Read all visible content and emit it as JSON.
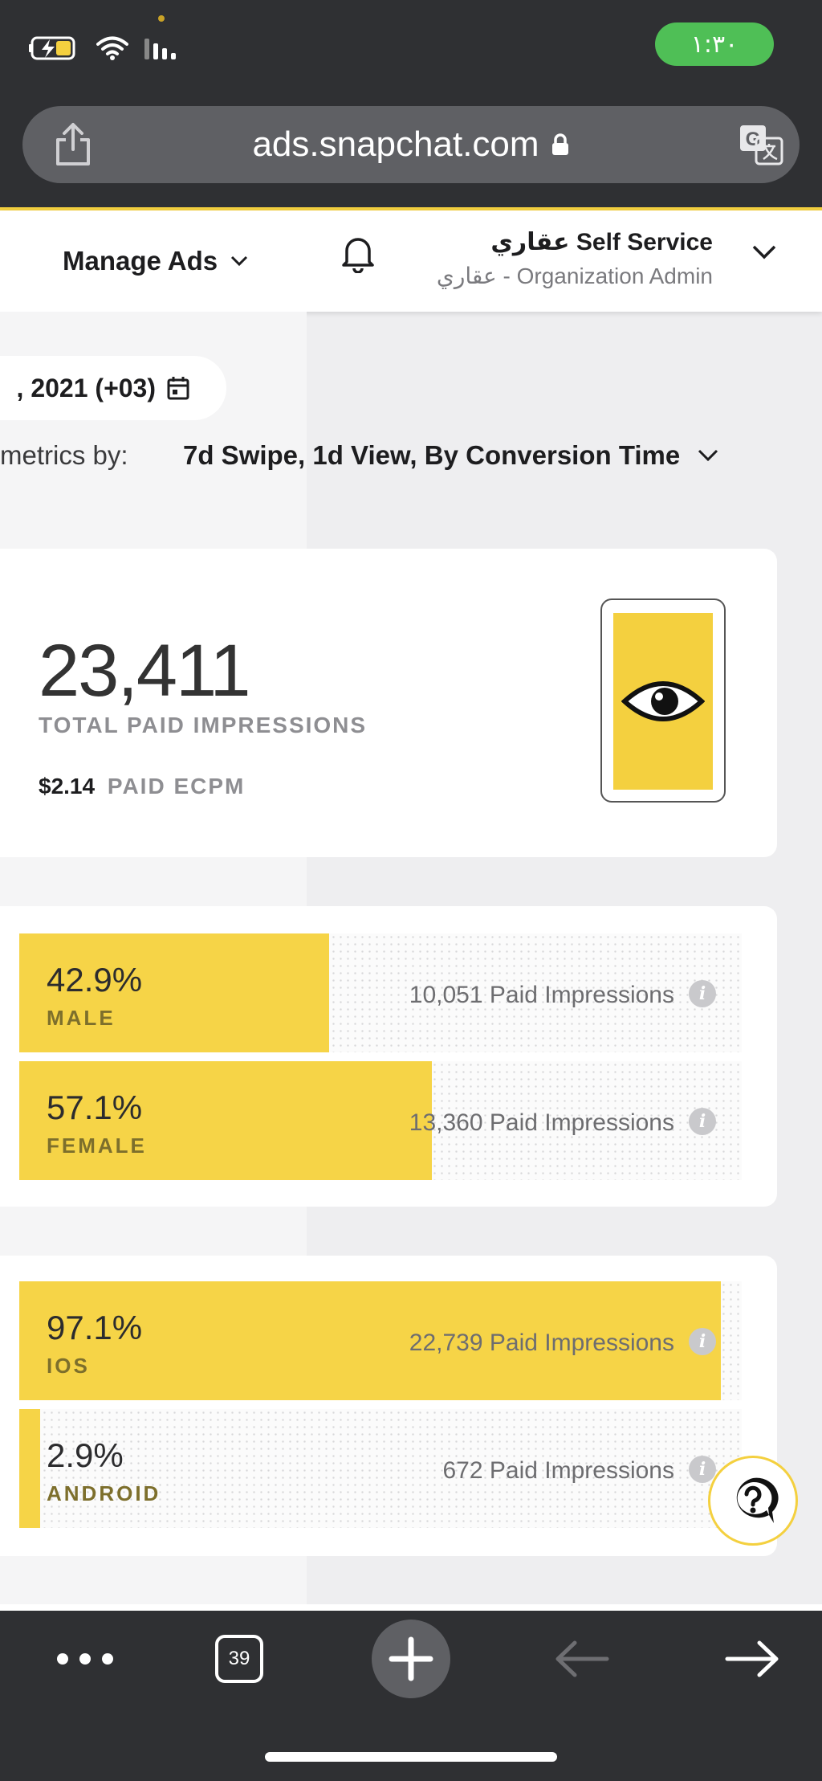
{
  "status_bar": {
    "time": "١:٣٠",
    "battery_icon": "battery-charging-icon",
    "wifi_icon": "wifi-icon",
    "signal_icon": "signal-icon"
  },
  "browser": {
    "url": "ads.snapchat.com",
    "tab_count": "39"
  },
  "header": {
    "manage_ads": "Manage Ads",
    "account_name": "عقاري Self Service",
    "account_role": "عقاري - Organization Admin"
  },
  "filters": {
    "date_fragment": ", 2021 (+03)",
    "metrics_label": "metrics by:",
    "metrics_value": "7d Swipe, 1d View, By Conversion Time"
  },
  "summary": {
    "total": "23,411",
    "total_label": "TOTAL PAID IMPRESSIONS",
    "ecpm_value": "$2.14",
    "ecpm_label": "PAID ECPM"
  },
  "gender": [
    {
      "pct": "42.9%",
      "label": "MALE",
      "impressions": "10,051 Paid Impressions",
      "share": 0.429
    },
    {
      "pct": "57.1%",
      "label": "FEMALE",
      "impressions": "13,360 Paid Impressions",
      "share": 0.571
    }
  ],
  "os": [
    {
      "pct": "97.1%",
      "label": "IOS",
      "impressions": "22,739 Paid Impressions",
      "share": 0.971
    },
    {
      "pct": "2.9%",
      "label": "ANDROID",
      "impressions": "672 Paid Impressions",
      "share": 0.029
    }
  ],
  "colors": {
    "brand_yellow": "#F6D447",
    "chrome_dark": "#2F3033",
    "status_green": "#4FBF56"
  }
}
